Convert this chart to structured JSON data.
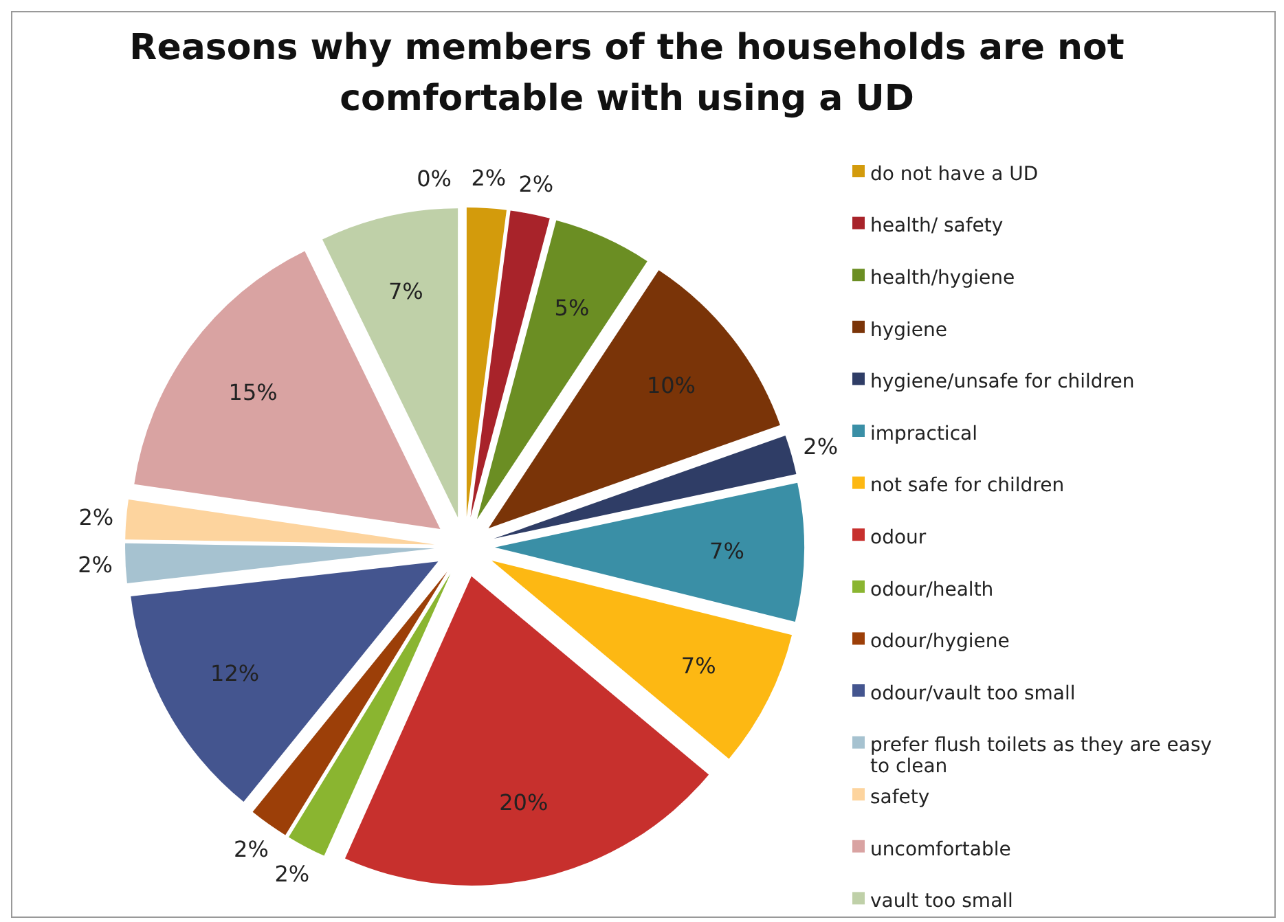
{
  "chart_data": {
    "type": "pie",
    "title": "Reasons why members of the households are not comfortable with using a UD",
    "categories": [
      "do not have a UD",
      "health/ safety",
      "health/hygiene",
      "hygiene",
      "hygiene/unsafe for children",
      "impractical",
      "not safe for children",
      "odour",
      "odour/health",
      "odour/hygiene",
      "odour/vault too small",
      "prefer flush toilets as they are easy to clean",
      "safety",
      "uncomfortable",
      "vault too small",
      null
    ],
    "values": [
      2,
      2,
      5,
      10,
      2,
      7,
      7,
      20,
      2,
      2,
      12,
      2,
      2,
      15,
      7,
      0
    ],
    "colors": [
      "#d39b0c",
      "#a8232a",
      "#6b8e23",
      "#7a3408",
      "#2f3d66",
      "#3a8fa6",
      "#fdb813",
      "#c7302d",
      "#8ab530",
      "#9c3f08",
      "#44558f",
      "#a6c2d0",
      "#fdd49e",
      "#d9a3a2",
      "#bfd0a8",
      "#8ea8c8"
    ],
    "value_labels": [
      "2%",
      "2%",
      "5%",
      "10%",
      "2%",
      "7%",
      "7%",
      "20%",
      "2%",
      "2%",
      "12%",
      "2%",
      "2%",
      "15%",
      "7%",
      "0%"
    ],
    "legend": "right"
  }
}
